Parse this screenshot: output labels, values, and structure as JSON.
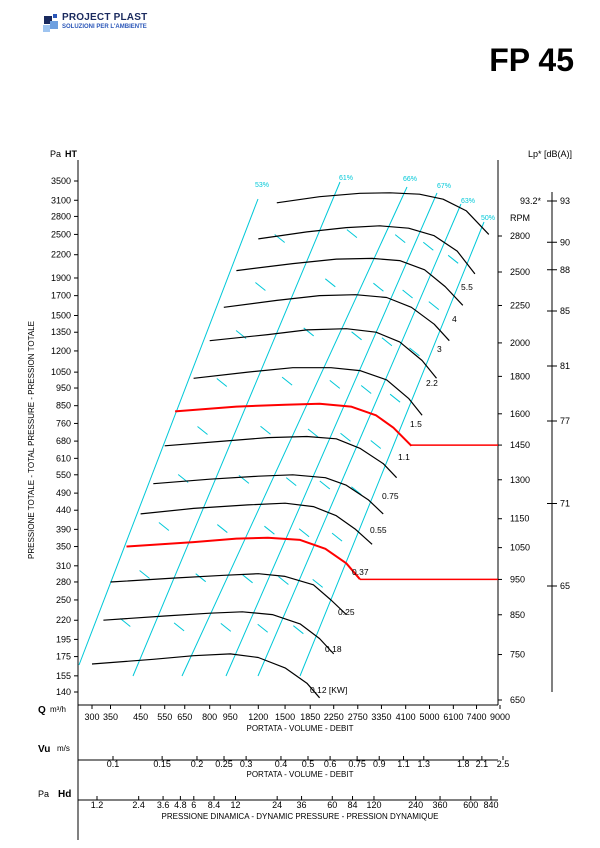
{
  "brand": {
    "name": "PROJECT PLAST",
    "tagline": "SOLUZIONI PER L'AMBIENTE"
  },
  "model": "FP 45",
  "colors": {
    "grid": "#00c8d8",
    "highlight": "#ff0000",
    "curve": "#000000",
    "brand_blue": "#1a2a5e"
  },
  "chart_data": {
    "type": "line",
    "title": "FP 45",
    "left_axis": {
      "unit": "Pa",
      "label": "HT",
      "ticks": [
        3500,
        3100,
        2800,
        2500,
        2200,
        1900,
        1700,
        1500,
        1350,
        1200,
        1050,
        950,
        850,
        760,
        680,
        610,
        550,
        490,
        440,
        390,
        350,
        310,
        280,
        250,
        220,
        195,
        175,
        155,
        140
      ]
    },
    "ylabel": "PRESSIONE TOTALE - TOTAL PRESSURE - PRESSION TOTALE",
    "rpm_axis": {
      "label": "RPM",
      "ticks": [
        2800,
        2500,
        2250,
        2000,
        1800,
        1600,
        1450,
        1300,
        1150,
        1050,
        950,
        850,
        750,
        650
      ]
    },
    "noise_axis": {
      "label": "Lp* [dB(A)]",
      "ticks": [
        93,
        90,
        88,
        85,
        81,
        77,
        71,
        65
      ],
      "note": "93.2*"
    },
    "efficiency_labels": [
      "53%",
      "61%",
      "66%",
      "67%",
      "63%",
      "50%"
    ],
    "power_labels": [
      "5.5",
      "4",
      "3",
      "2.2",
      "1.5",
      "1.1",
      "0.75",
      "0.55",
      "0.37",
      "0.25",
      "0.18",
      "0.12 [KW]"
    ],
    "x_axes": [
      {
        "symbol": "Q",
        "unit": "m³/h",
        "title": "PORTATA - VOLUME - DEBIT",
        "ticks": [
          "300",
          "350",
          "450",
          "550",
          "650",
          "800",
          "950",
          "1200",
          "1500",
          "1850",
          "2250",
          "2750",
          "3350",
          "4100",
          "5000",
          "6100",
          "7400",
          "9000"
        ]
      },
      {
        "symbol": "Vu",
        "unit": "m/s",
        "title": "PORTATA - VOLUME - DEBIT",
        "ticks": [
          "0.1",
          "0.15",
          "0.2",
          "0.25",
          "0.3",
          "0.4",
          "0.5",
          "0.6",
          "0.75",
          "0.9",
          "1.1",
          "1.3",
          "1.8",
          "2.1",
          "2.5"
        ]
      },
      {
        "symbol": "Hd",
        "unit": "Pa",
        "title": "PRESSIONE DINAMICA - DYNAMIC PRESSURE - PRESSION DYNAMIQUE",
        "ticks": [
          "1.2",
          "2.4",
          "3.6",
          "4.8",
          "6",
          "8.4",
          "12",
          "24",
          "36",
          "60",
          "84",
          "120",
          "240",
          "360",
          "600",
          "840"
        ]
      }
    ],
    "series": [
      {
        "rpm": 2800,
        "q": [
          1400,
          2000,
          2800,
          3600,
          4600,
          5600,
          6800,
          8200
        ],
        "pa": [
          3050,
          3170,
          3240,
          3250,
          3220,
          3120,
          2900,
          2500
        ]
      },
      {
        "rpm": 2500,
        "q": [
          1200,
          1800,
          2500,
          3300,
          4200,
          5200,
          6300,
          7300
        ],
        "pa": [
          2430,
          2540,
          2610,
          2640,
          2600,
          2480,
          2250,
          1950
        ]
      },
      {
        "rpm": 2250,
        "q": [
          1000,
          1600,
          2300,
          3100,
          3900,
          4800,
          5700,
          6600
        ],
        "pa": [
          1990,
          2080,
          2140,
          2150,
          2120,
          2000,
          1800,
          1600
        ]
      },
      {
        "rpm": 2000,
        "q": [
          900,
          1400,
          2000,
          2700,
          3500,
          4300,
          5200,
          5900
        ],
        "pa": [
          1580,
          1650,
          1700,
          1710,
          1680,
          1580,
          1420,
          1280
        ]
      },
      {
        "rpm": 1800,
        "q": [
          800,
          1300,
          1800,
          2500,
          3200,
          3900,
          4700,
          5300
        ],
        "pa": [
          1280,
          1330,
          1370,
          1380,
          1350,
          1270,
          1130,
          1010
        ]
      },
      {
        "rpm": 1600,
        "q": [
          700,
          1100,
          1600,
          2200,
          2800,
          3500,
          4200,
          4700
        ],
        "pa": [
          1010,
          1050,
          1080,
          1080,
          1060,
          1000,
          890,
          800
        ]
      },
      {
        "rpm": 1450,
        "q": [
          600,
          1000,
          1500,
          2000,
          2600,
          3200,
          3700,
          4300
        ],
        "pa": [
          820,
          845,
          855,
          860,
          845,
          800,
          740,
          660
        ],
        "highlight": true
      },
      {
        "rpm": 1300,
        "q": [
          550,
          900,
          1300,
          1800,
          2300,
          2800,
          3400,
          3800
        ],
        "pa": [
          660,
          680,
          695,
          700,
          690,
          650,
          590,
          540
        ]
      },
      {
        "rpm": 1150,
        "q": [
          500,
          800,
          1200,
          1600,
          2100,
          2500,
          3000,
          3400
        ],
        "pa": [
          520,
          535,
          545,
          550,
          540,
          515,
          470,
          430
        ]
      },
      {
        "rpm": 1050,
        "q": [
          450,
          700,
          1100,
          1500,
          1900,
          2300,
          2700,
          3100
        ],
        "pa": [
          430,
          445,
          455,
          460,
          450,
          425,
          390,
          355
        ]
      },
      {
        "rpm": 950,
        "q": [
          400,
          700,
          1000,
          1300,
          1700,
          2100,
          2500,
          2800
        ],
        "pa": [
          350,
          360,
          368,
          370,
          365,
          345,
          315,
          285
        ],
        "highlight": true
      },
      {
        "rpm": 850,
        "q": [
          350,
          600,
          900,
          1200,
          1500,
          1900,
          2200,
          2500
        ],
        "pa": [
          280,
          287,
          292,
          295,
          290,
          275,
          250,
          228
        ]
      },
      {
        "rpm": 750,
        "q": [
          330,
          550,
          800,
          1050,
          1350,
          1700,
          2000,
          2250
        ],
        "pa": [
          220,
          226,
          230,
          232,
          228,
          215,
          196,
          178
        ]
      },
      {
        "rpm": 650,
        "q": [
          300,
          500,
          700,
          950,
          1200,
          1500,
          1800,
          2000
        ],
        "pa": [
          167,
          172,
          176,
          178,
          174,
          163,
          148,
          135
        ]
      }
    ],
    "highlighted_duties": [
      {
        "rpm": 1450,
        "power": "1.1"
      },
      {
        "rpm": 950,
        "power": "0.37"
      }
    ]
  }
}
